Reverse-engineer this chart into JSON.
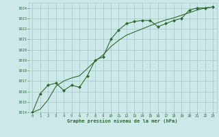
{
  "line1_x": [
    0,
    1,
    2,
    3,
    4,
    5,
    6,
    7,
    8,
    9,
    10,
    11,
    12,
    13,
    14,
    15,
    16,
    17,
    18,
    19,
    20,
    21,
    22,
    23
  ],
  "line1_y": [
    1014.0,
    1015.8,
    1016.6,
    1016.8,
    1016.1,
    1016.6,
    1016.4,
    1017.5,
    1019.0,
    1019.3,
    1021.0,
    1021.9,
    1022.5,
    1022.7,
    1022.8,
    1022.8,
    1022.2,
    1022.5,
    1022.8,
    1023.0,
    1023.8,
    1024.0,
    1024.0,
    1024.1
  ],
  "line2_x": [
    0,
    1,
    2,
    3,
    4,
    5,
    6,
    7,
    8,
    9,
    10,
    11,
    12,
    13,
    14,
    15,
    16,
    17,
    18,
    19,
    20,
    21,
    22,
    23
  ],
  "line2_y": [
    1014.0,
    1014.3,
    1015.2,
    1016.5,
    1017.0,
    1017.3,
    1017.5,
    1018.2,
    1018.9,
    1019.5,
    1020.3,
    1020.9,
    1021.4,
    1021.7,
    1022.0,
    1022.3,
    1022.6,
    1022.85,
    1023.05,
    1023.3,
    1023.55,
    1023.8,
    1024.0,
    1024.1
  ],
  "line_color": "#2d6a2d",
  "marker": "D",
  "marker_size": 2.0,
  "bg_color": "#cce8e8",
  "grid_color": "#aacccc",
  "xlabel": "Graphe pression niveau de la mer (hPa)",
  "ylim": [
    1014,
    1024.5
  ],
  "xlim": [
    -0.5,
    23.5
  ],
  "yticks": [
    1014,
    1015,
    1016,
    1017,
    1018,
    1019,
    1020,
    1021,
    1022,
    1023,
    1024
  ],
  "xticks": [
    0,
    1,
    2,
    3,
    4,
    5,
    6,
    7,
    8,
    9,
    10,
    11,
    12,
    13,
    14,
    15,
    16,
    17,
    18,
    19,
    20,
    21,
    22,
    23
  ]
}
